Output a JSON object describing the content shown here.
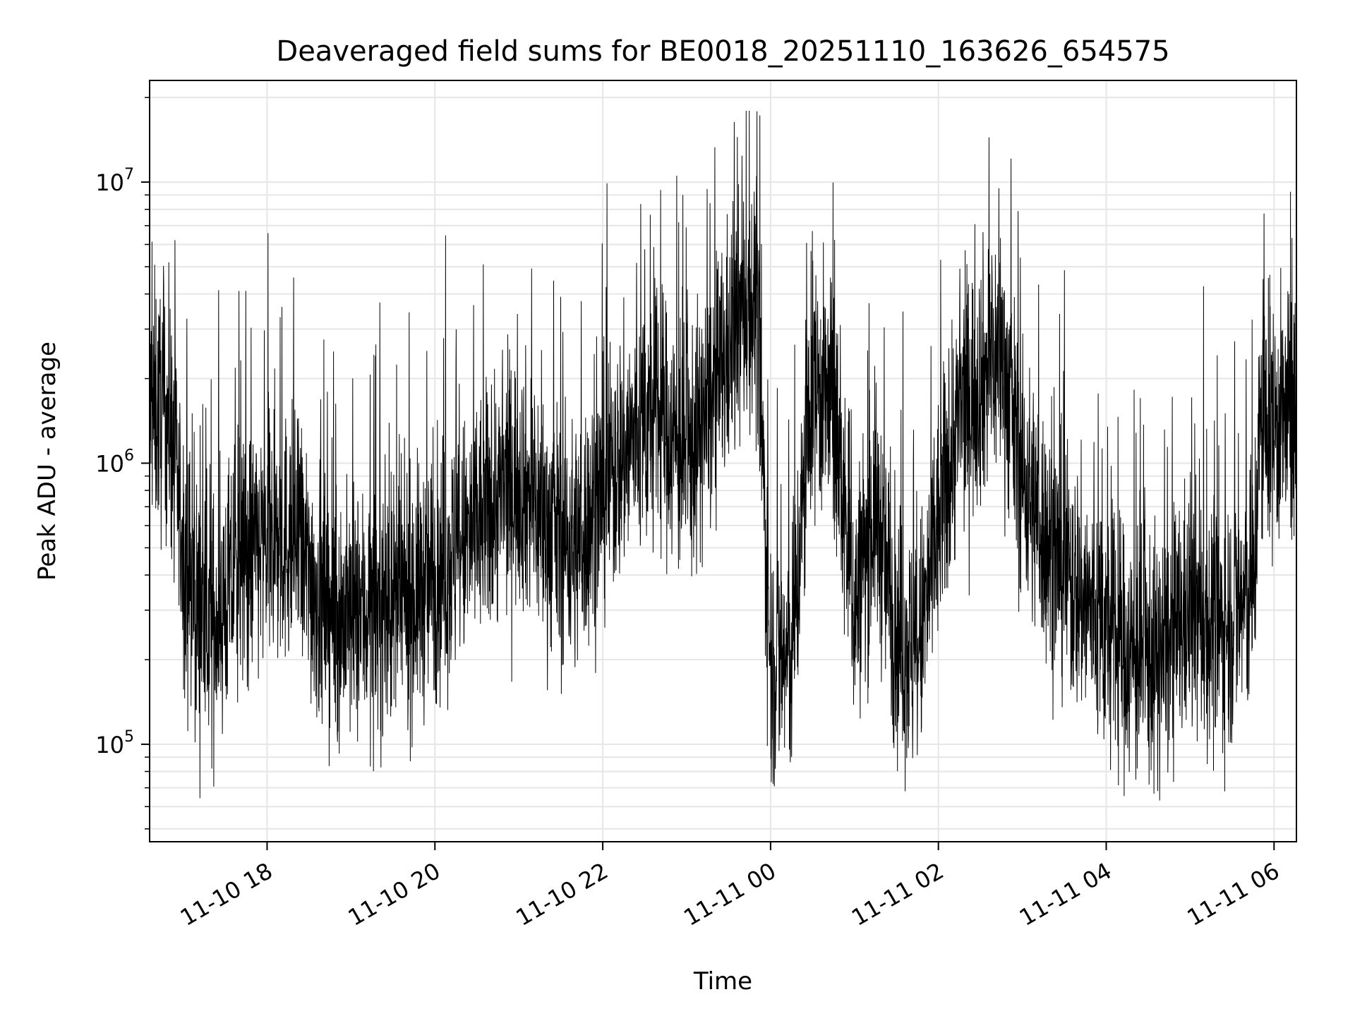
{
  "chart_data": {
    "type": "line",
    "title": "Deaveraged field sums for BE0018_20251110_163626_654575",
    "xlabel": "Time",
    "ylabel": "Peak ADU - average",
    "y_scale": "log",
    "ylim": [
      45000,
      23000000
    ],
    "xlim": [
      "2025-11-10 16:36",
      "2025-11-11 06:16"
    ],
    "grid": true,
    "line_color": "#000000",
    "grid_color": "#e6e6e6",
    "x_ticks": [
      {
        "value": "2025-11-10 18:00",
        "label": "11-10 18"
      },
      {
        "value": "2025-11-10 20:00",
        "label": "11-10 20"
      },
      {
        "value": "2025-11-10 22:00",
        "label": "11-10 22"
      },
      {
        "value": "2025-11-11 00:00",
        "label": "11-11 00"
      },
      {
        "value": "2025-11-11 02:00",
        "label": "11-11 02"
      },
      {
        "value": "2025-11-11 04:00",
        "label": "11-11 04"
      },
      {
        "value": "2025-11-11 06:00",
        "label": "11-11 06"
      }
    ],
    "y_ticks": [
      {
        "value": 100000,
        "base": "10",
        "exp": "5"
      },
      {
        "value": 1000000,
        "base": "10",
        "exp": "6"
      },
      {
        "value": 10000000,
        "base": "10",
        "exp": "7"
      }
    ],
    "series": [
      {
        "x": [
          "2025-11-10 16:36",
          "2025-11-10 16:50",
          "2025-11-10 17:00",
          "2025-11-10 17:10",
          "2025-11-10 17:20",
          "2025-11-10 17:30",
          "2025-11-10 17:40",
          "2025-11-10 18:00",
          "2025-11-10 18:20",
          "2025-11-10 18:40",
          "2025-11-10 19:00",
          "2025-11-10 19:20",
          "2025-11-10 19:40",
          "2025-11-10 20:00",
          "2025-11-10 20:20",
          "2025-11-10 20:40",
          "2025-11-10 21:00",
          "2025-11-10 21:20",
          "2025-11-10 21:40",
          "2025-11-10 22:00",
          "2025-11-10 22:20",
          "2025-11-10 22:40",
          "2025-11-10 23:00",
          "2025-11-10 23:15",
          "2025-11-10 23:30",
          "2025-11-10 23:45",
          "2025-11-10 23:50",
          "2025-11-11 00:00",
          "2025-11-11 00:15",
          "2025-11-11 00:30",
          "2025-11-11 00:45",
          "2025-11-11 01:00",
          "2025-11-11 01:15",
          "2025-11-11 01:30",
          "2025-11-11 01:45",
          "2025-11-11 02:00",
          "2025-11-11 02:15",
          "2025-11-11 02:30",
          "2025-11-11 02:45",
          "2025-11-11 03:00",
          "2025-11-11 03:20",
          "2025-11-11 03:40",
          "2025-11-11 04:00",
          "2025-11-11 04:20",
          "2025-11-11 04:40",
          "2025-11-11 05:00",
          "2025-11-11 05:20",
          "2025-11-11 05:45",
          "2025-11-11 05:50",
          "2025-11-11 06:00",
          "2025-11-11 06:16"
        ],
        "y": [
          1600000,
          1500000,
          500000,
          300000,
          260000,
          320000,
          450000,
          500000,
          550000,
          300000,
          280000,
          300000,
          320000,
          400000,
          500000,
          700000,
          900000,
          600000,
          500000,
          800000,
          1200000,
          1500000,
          1000000,
          1500000,
          2500000,
          4000000,
          3500000,
          200000,
          200000,
          2000000,
          1500000,
          300000,
          700000,
          250000,
          200000,
          600000,
          1500000,
          2000000,
          2500000,
          900000,
          500000,
          350000,
          250000,
          200000,
          200000,
          300000,
          250000,
          350000,
          1300000,
          1400000,
          1400000
        ]
      }
    ]
  }
}
